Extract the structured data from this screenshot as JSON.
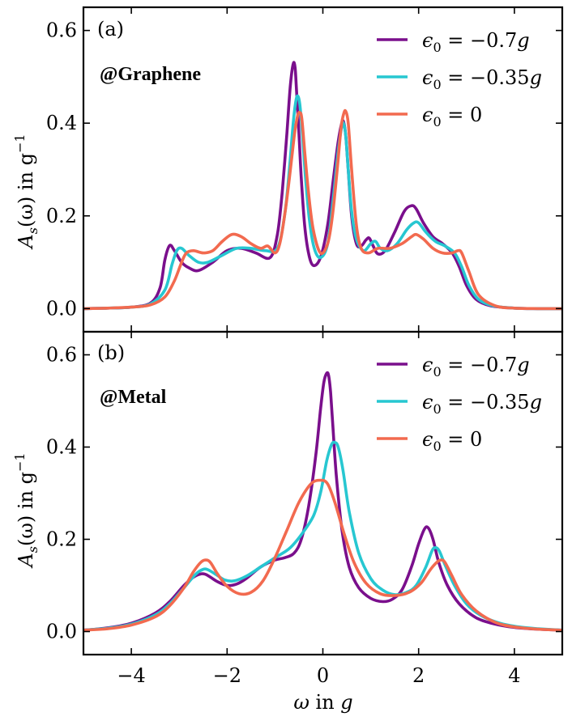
{
  "chart_data": [
    {
      "type": "line",
      "panel_tag": "(a)",
      "annotation": "@Graphene",
      "ylabel": "A_s(ω) in g^−1",
      "ylabel_parts": {
        "A": "A",
        "s": "s",
        "rest": "(ω) in g",
        "exp": "−1"
      },
      "xlabel": "",
      "xlim": [
        -5,
        5
      ],
      "ylim": [
        -0.05,
        0.65
      ],
      "xticks": [
        -4,
        -2,
        0,
        2,
        4
      ],
      "yticks": [
        0.0,
        0.2,
        0.4,
        0.6
      ],
      "ytick_labels": [
        "0.0",
        "0.2",
        "0.4",
        "0.6"
      ],
      "legend_position": "top-right",
      "series": [
        {
          "name": "ε0 = −0.7g",
          "legend": {
            "eps": "ϵ",
            "sub": "0",
            "rest": " = −0.7",
            "g": "g"
          },
          "color": "#7a0f8c",
          "x": [
            -5.0,
            -4.5,
            -4.0,
            -3.6,
            -3.4,
            -3.3,
            -3.2,
            -3.1,
            -2.95,
            -2.8,
            -2.6,
            -2.3,
            -2.0,
            -1.7,
            -1.4,
            -1.1,
            -0.95,
            -0.85,
            -0.75,
            -0.68,
            -0.62,
            -0.58,
            -0.55,
            -0.5,
            -0.45,
            -0.38,
            -0.3,
            -0.2,
            -0.05,
            0.1,
            0.22,
            0.32,
            0.4,
            0.44,
            0.48,
            0.53,
            0.6,
            0.7,
            0.8,
            0.9,
            0.97,
            1.05,
            1.15,
            1.3,
            1.5,
            1.7,
            1.85,
            1.95,
            2.1,
            2.3,
            2.5,
            2.7,
            2.85,
            3.0,
            3.2,
            3.5,
            4.0,
            4.5,
            5.0
          ],
          "y": [
            0.0,
            0.001,
            0.003,
            0.012,
            0.045,
            0.105,
            0.136,
            0.125,
            0.1,
            0.088,
            0.082,
            0.1,
            0.125,
            0.13,
            0.12,
            0.11,
            0.16,
            0.25,
            0.38,
            0.48,
            0.528,
            0.52,
            0.47,
            0.38,
            0.28,
            0.18,
            0.12,
            0.093,
            0.11,
            0.18,
            0.28,
            0.36,
            0.402,
            0.4,
            0.37,
            0.3,
            0.2,
            0.14,
            0.135,
            0.148,
            0.152,
            0.135,
            0.118,
            0.125,
            0.165,
            0.21,
            0.222,
            0.215,
            0.185,
            0.155,
            0.14,
            0.12,
            0.09,
            0.05,
            0.02,
            0.006,
            0.001,
            0.0,
            0.0
          ]
        },
        {
          "name": "ε0 = −0.35g",
          "legend": {
            "eps": "ϵ",
            "sub": "0",
            "rest": " = −0.35",
            "g": "g"
          },
          "color": "#27c7d1",
          "x": [
            -5.0,
            -4.5,
            -4.0,
            -3.6,
            -3.3,
            -3.15,
            -3.05,
            -2.95,
            -2.8,
            -2.6,
            -2.4,
            -2.1,
            -1.8,
            -1.5,
            -1.2,
            -0.95,
            -0.8,
            -0.7,
            -0.62,
            -0.56,
            -0.52,
            -0.48,
            -0.43,
            -0.36,
            -0.28,
            -0.18,
            -0.05,
            0.1,
            0.22,
            0.32,
            0.4,
            0.44,
            0.48,
            0.53,
            0.6,
            0.7,
            0.85,
            1.0,
            1.1,
            1.2,
            1.35,
            1.55,
            1.75,
            1.9,
            2.0,
            2.15,
            2.35,
            2.55,
            2.75,
            2.9,
            3.05,
            3.25,
            3.55,
            4.0,
            4.5,
            5.0
          ],
          "y": [
            0.0,
            0.001,
            0.003,
            0.01,
            0.04,
            0.095,
            0.125,
            0.13,
            0.115,
            0.1,
            0.1,
            0.115,
            0.13,
            0.13,
            0.125,
            0.13,
            0.2,
            0.3,
            0.4,
            0.45,
            0.458,
            0.44,
            0.38,
            0.28,
            0.19,
            0.13,
            0.11,
            0.14,
            0.24,
            0.34,
            0.395,
            0.397,
            0.37,
            0.3,
            0.21,
            0.15,
            0.125,
            0.14,
            0.145,
            0.13,
            0.125,
            0.14,
            0.17,
            0.185,
            0.185,
            0.165,
            0.145,
            0.135,
            0.12,
            0.09,
            0.05,
            0.02,
            0.006,
            0.001,
            0.0,
            0.0
          ]
        },
        {
          "name": "ε0 = 0",
          "legend": {
            "eps": "ϵ",
            "sub": "0",
            "rest": " = 0",
            "g": ""
          },
          "color": "#f26a4f",
          "x": [
            -5.0,
            -4.5,
            -4.0,
            -3.6,
            -3.3,
            -3.1,
            -2.95,
            -2.85,
            -2.7,
            -2.5,
            -2.3,
            -2.1,
            -1.9,
            -1.7,
            -1.5,
            -1.3,
            -1.15,
            -1.0,
            -0.9,
            -0.8,
            -0.7,
            -0.6,
            -0.53,
            -0.48,
            -0.44,
            -0.38,
            -0.3,
            -0.2,
            -0.05,
            0.1,
            0.2,
            0.3,
            0.38,
            0.44,
            0.48,
            0.53,
            0.6,
            0.7,
            0.8,
            0.95,
            1.15,
            1.4,
            1.65,
            1.85,
            1.95,
            2.1,
            2.3,
            2.5,
            2.7,
            2.82,
            2.9,
            3.05,
            3.25,
            3.6,
            4.0,
            4.5,
            5.0
          ],
          "y": [
            0.0,
            0.001,
            0.003,
            0.008,
            0.025,
            0.06,
            0.1,
            0.12,
            0.125,
            0.12,
            0.125,
            0.145,
            0.16,
            0.155,
            0.14,
            0.13,
            0.135,
            0.12,
            0.14,
            0.2,
            0.28,
            0.37,
            0.415,
            0.423,
            0.41,
            0.34,
            0.25,
            0.17,
            0.12,
            0.14,
            0.2,
            0.3,
            0.39,
            0.422,
            0.425,
            0.4,
            0.3,
            0.18,
            0.13,
            0.12,
            0.13,
            0.13,
            0.14,
            0.155,
            0.16,
            0.15,
            0.13,
            0.12,
            0.12,
            0.125,
            0.12,
            0.08,
            0.03,
            0.006,
            0.001,
            0.0,
            0.0
          ]
        }
      ]
    },
    {
      "type": "line",
      "panel_tag": "(b)",
      "annotation": "@Metal",
      "ylabel": "A_s(ω) in g^−1",
      "ylabel_parts": {
        "A": "A",
        "s": "s",
        "rest": "(ω) in g",
        "exp": "−1"
      },
      "xlabel": "ω in g",
      "xlabel_parts": {
        "omega": "ω",
        "rest": " in ",
        "g": "g"
      },
      "xlim": [
        -5,
        5
      ],
      "ylim": [
        -0.05,
        0.65
      ],
      "xticks": [
        -4,
        -2,
        0,
        2,
        4
      ],
      "xtick_labels": [
        "−4",
        "−2",
        "0",
        "2",
        "4"
      ],
      "yticks": [
        0.0,
        0.2,
        0.4,
        0.6
      ],
      "ytick_labels": [
        "0.0",
        "0.2",
        "0.4",
        "0.6"
      ],
      "legend_position": "top-right",
      "series": [
        {
          "name": "ε0 = −0.7g",
          "legend": {
            "eps": "ϵ",
            "sub": "0",
            "rest": " = −0.7",
            "g": "g"
          },
          "color": "#7a0f8c",
          "x": [
            -5.0,
            -4.5,
            -4.0,
            -3.5,
            -3.2,
            -2.9,
            -2.7,
            -2.55,
            -2.45,
            -2.35,
            -2.2,
            -2.0,
            -1.8,
            -1.6,
            -1.3,
            -1.0,
            -0.8,
            -0.6,
            -0.45,
            -0.3,
            -0.15,
            -0.05,
            0.02,
            0.08,
            0.12,
            0.16,
            0.2,
            0.28,
            0.4,
            0.55,
            0.75,
            1.0,
            1.25,
            1.45,
            1.65,
            1.85,
            2.0,
            2.12,
            2.2,
            2.3,
            2.42,
            2.6,
            2.85,
            3.2,
            3.6,
            4.0,
            4.5,
            5.0
          ],
          "y": [
            0.003,
            0.008,
            0.018,
            0.04,
            0.065,
            0.1,
            0.118,
            0.125,
            0.124,
            0.118,
            0.108,
            0.1,
            0.103,
            0.115,
            0.14,
            0.155,
            0.16,
            0.17,
            0.2,
            0.27,
            0.38,
            0.48,
            0.54,
            0.56,
            0.555,
            0.52,
            0.46,
            0.34,
            0.22,
            0.14,
            0.095,
            0.072,
            0.065,
            0.07,
            0.09,
            0.14,
            0.19,
            0.222,
            0.225,
            0.2,
            0.15,
            0.1,
            0.06,
            0.03,
            0.016,
            0.009,
            0.005,
            0.003
          ]
        },
        {
          "name": "ε0 = −0.35g",
          "legend": {
            "eps": "ϵ",
            "sub": "0",
            "rest": " = −0.35",
            "g": "g"
          },
          "color": "#27c7d1",
          "x": [
            -5.0,
            -4.5,
            -4.0,
            -3.5,
            -3.2,
            -2.9,
            -2.65,
            -2.5,
            -2.4,
            -2.25,
            -2.05,
            -1.85,
            -1.6,
            -1.3,
            -1.0,
            -0.7,
            -0.45,
            -0.2,
            -0.05,
            0.08,
            0.18,
            0.25,
            0.32,
            0.42,
            0.55,
            0.75,
            1.0,
            1.25,
            1.5,
            1.75,
            1.95,
            2.15,
            2.28,
            2.35,
            2.43,
            2.55,
            2.75,
            3.0,
            3.3,
            3.7,
            4.1,
            4.5,
            5.0
          ],
          "y": [
            0.003,
            0.007,
            0.016,
            0.036,
            0.06,
            0.095,
            0.125,
            0.135,
            0.134,
            0.125,
            0.112,
            0.11,
            0.12,
            0.14,
            0.16,
            0.18,
            0.21,
            0.25,
            0.3,
            0.37,
            0.405,
            0.41,
            0.4,
            0.35,
            0.26,
            0.17,
            0.115,
            0.09,
            0.08,
            0.085,
            0.1,
            0.14,
            0.175,
            0.182,
            0.175,
            0.145,
            0.1,
            0.06,
            0.035,
            0.018,
            0.01,
            0.006,
            0.003
          ]
        },
        {
          "name": "ε0 = 0",
          "legend": {
            "eps": "ϵ",
            "sub": "0",
            "rest": " = 0",
            "g": ""
          },
          "color": "#f26a4f",
          "x": [
            -5.0,
            -4.5,
            -4.0,
            -3.5,
            -3.2,
            -2.9,
            -2.7,
            -2.55,
            -2.45,
            -2.35,
            -2.2,
            -2.0,
            -1.75,
            -1.5,
            -1.25,
            -1.0,
            -0.75,
            -0.5,
            -0.25,
            -0.05,
            0.1,
            0.25,
            0.45,
            0.65,
            0.9,
            1.2,
            1.5,
            1.8,
            2.05,
            2.25,
            2.4,
            2.48,
            2.55,
            2.7,
            2.9,
            3.2,
            3.6,
            4.0,
            4.5,
            5.0
          ],
          "y": [
            0.003,
            0.006,
            0.014,
            0.032,
            0.056,
            0.095,
            0.13,
            0.15,
            0.155,
            0.15,
            0.125,
            0.098,
            0.082,
            0.085,
            0.11,
            0.16,
            0.22,
            0.28,
            0.32,
            0.328,
            0.32,
            0.28,
            0.21,
            0.15,
            0.105,
            0.082,
            0.078,
            0.085,
            0.105,
            0.135,
            0.152,
            0.155,
            0.15,
            0.12,
            0.08,
            0.045,
            0.02,
            0.01,
            0.005,
            0.003
          ]
        }
      ]
    }
  ]
}
